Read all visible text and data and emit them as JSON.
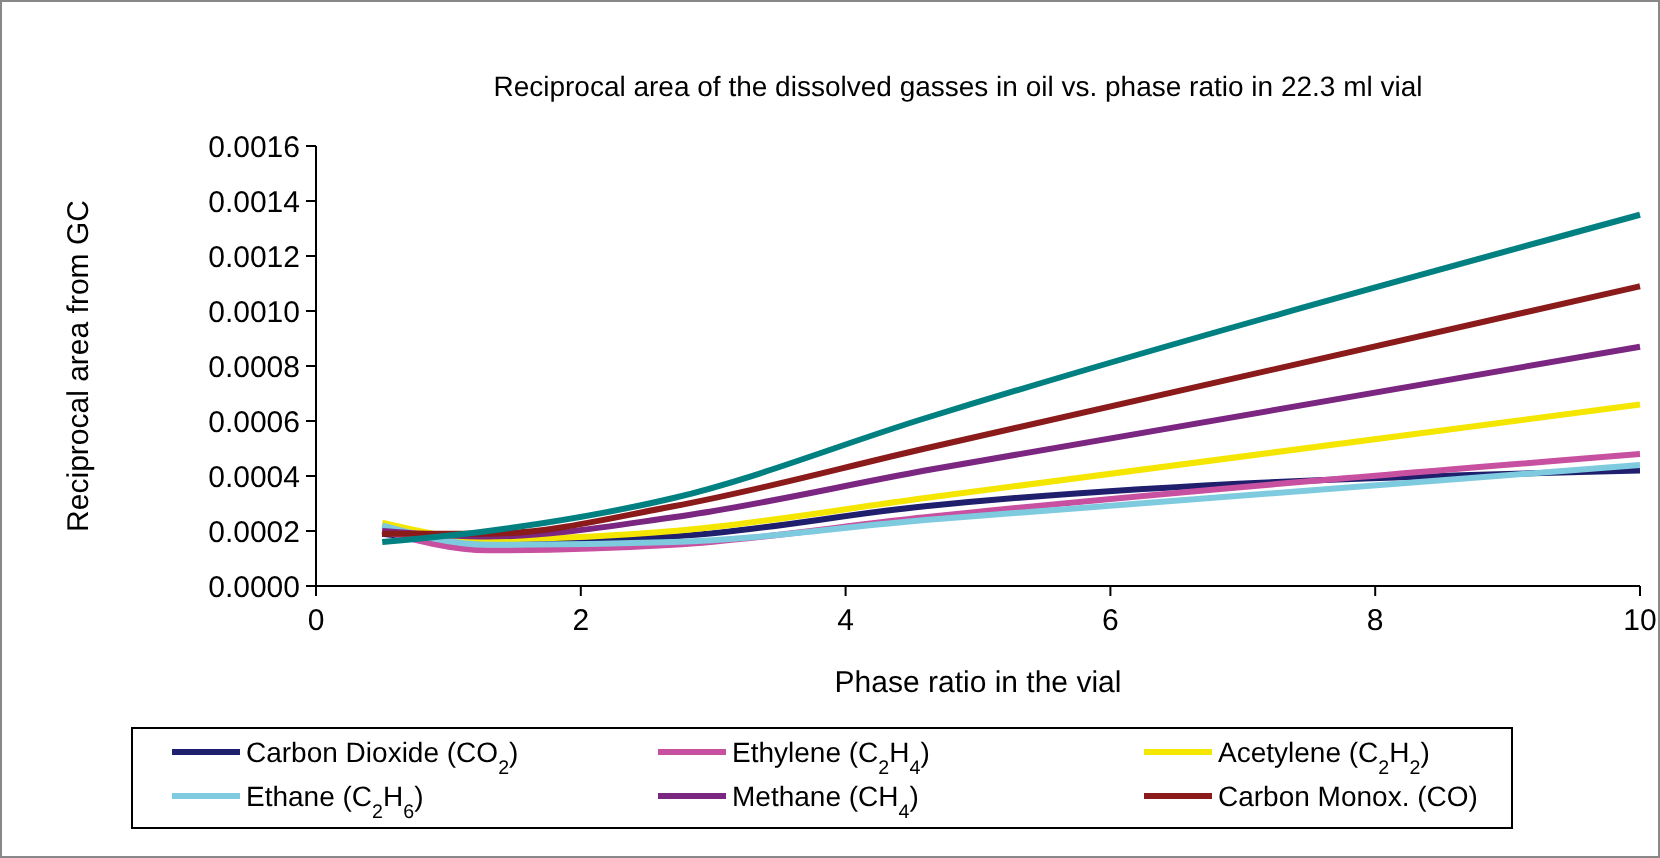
{
  "chart_data": {
    "type": "line",
    "title": "Reciprocal area of the dissolved gasses in oil vs. phase ratio in 22.3 ml vial",
    "xlabel": "Phase ratio in the vial",
    "ylabel": "Reciprocal area from GC",
    "x": [
      0.5,
      1.3,
      2.7,
      4.6,
      10
    ],
    "xlim": [
      0,
      10
    ],
    "xticks": [
      0,
      2,
      4,
      6,
      8,
      10
    ],
    "ylim": [
      0,
      0.0016
    ],
    "yticks": [
      {
        "value": 0,
        "label": "0.0000"
      },
      {
        "value": 0.0002,
        "label": "0.0002"
      },
      {
        "value": 0.0004,
        "label": "0.0004"
      },
      {
        "value": 0.0006,
        "label": "0.0006"
      },
      {
        "value": 0.0008,
        "label": "0.0008"
      },
      {
        "value": 0.001,
        "label": "0.0010"
      },
      {
        "value": 0.0012,
        "label": "0.0012"
      },
      {
        "value": 0.0014,
        "label": "0.0014"
      },
      {
        "value": 0.0016,
        "label": "0.0016"
      }
    ],
    "legend": "bottom",
    "marker": "none",
    "line_style": "solid",
    "series": [
      {
        "name": "Carbon Dioxide (CO$_{2}$)",
        "color": "#1f1f6e",
        "values": [
          0.00019,
          0.00016,
          0.00018,
          0.00029,
          0.00042
        ]
      },
      {
        "name": "Ethylene (C$_{2}$H$_{4}$)",
        "color": "#c850a0",
        "values": [
          0.0002,
          0.00013,
          0.00015,
          0.00025,
          0.00048
        ]
      },
      {
        "name": "Acetylene (C$_{2}$H$_{2}$)",
        "color": "#f5e600",
        "values": [
          0.00023,
          0.00017,
          0.0002,
          0.00032,
          0.00066
        ]
      },
      {
        "name": "Ethane (C$_{2}$H$_{6}$)",
        "color": "#7ecbe0",
        "values": [
          0.00022,
          0.00015,
          0.00016,
          0.00024,
          0.00044
        ]
      },
      {
        "name": "Methane (CH$_{4}$)",
        "color": "#7b2680",
        "values": [
          0.0002,
          0.00018,
          0.00025,
          0.00042,
          0.00087
        ]
      },
      {
        "name": "Carbon Monox. (CO)",
        "color": "#8b1a1a",
        "values": [
          0.00019,
          0.00019,
          0.00029,
          0.0005,
          0.00109
        ]
      },
      {
        "values": [
          0.00016,
          0.0002,
          0.00032,
          0.00061,
          0.00135
        ],
        "color": "#008080"
      }
    ]
  }
}
